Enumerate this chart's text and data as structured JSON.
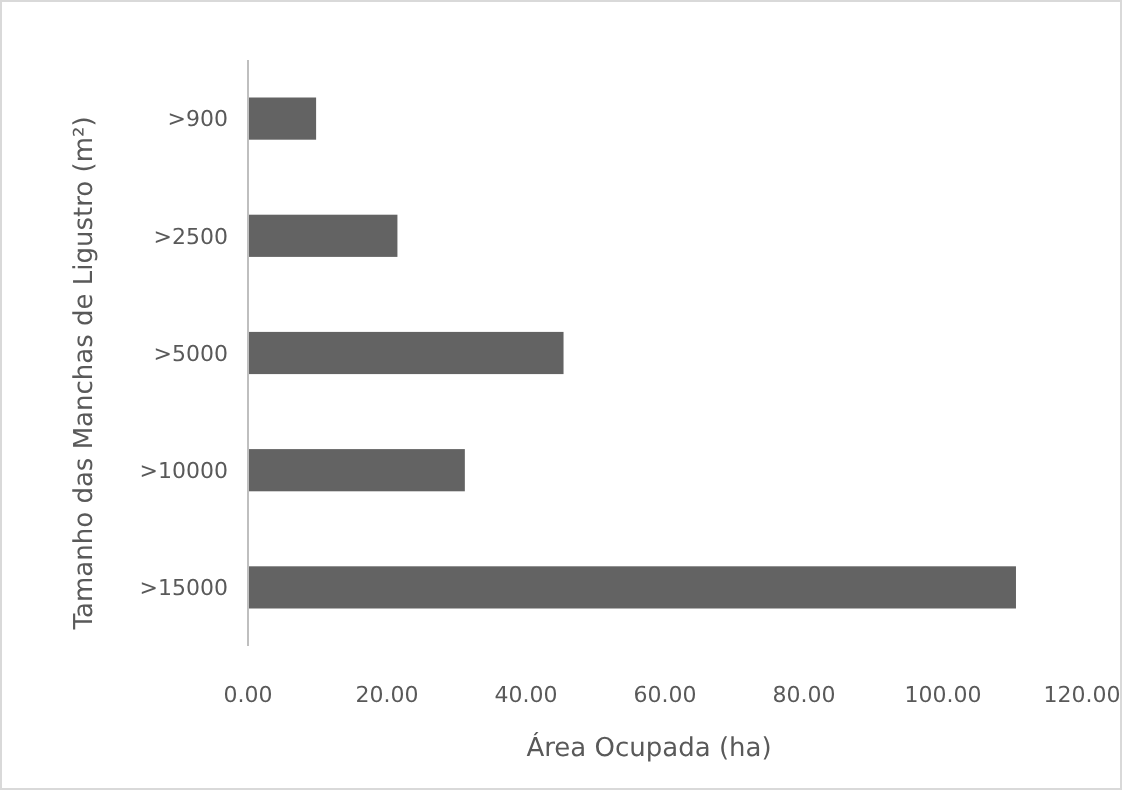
{
  "chart_data": {
    "type": "bar",
    "orientation": "horizontal",
    "xlabel": "Área Ocupada (ha)",
    "ylabel": "Tamanho das Manchas de Ligustro (m²)",
    "categories": [
      ">900",
      ">2500",
      ">5000",
      ">10000",
      ">15000"
    ],
    "values": [
      9.8,
      21.5,
      45.4,
      31.2,
      110.5
    ],
    "color": "#636363",
    "xlim": [
      0,
      120
    ],
    "xticks": [
      {
        "value": 0,
        "label": "0.00"
      },
      {
        "value": 20,
        "label": "20.00"
      },
      {
        "value": 40,
        "label": "40.00"
      },
      {
        "value": 60,
        "label": "60.00"
      },
      {
        "value": 80,
        "label": "80.00"
      },
      {
        "value": 100,
        "label": "100.00"
      },
      {
        "value": 120,
        "label": "120.00"
      }
    ],
    "grid": false
  }
}
